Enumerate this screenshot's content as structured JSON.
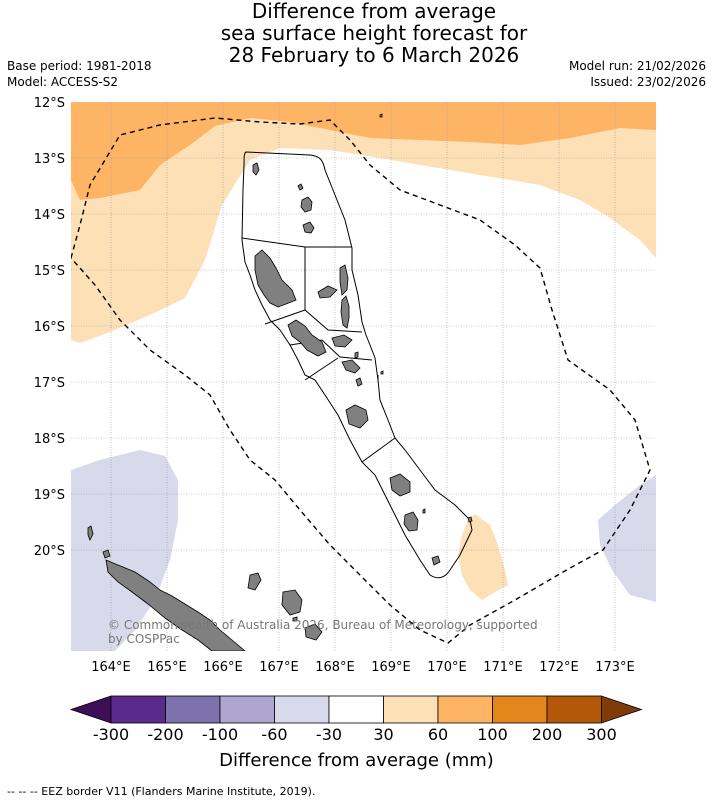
{
  "title_lines": [
    "Difference from average",
    "sea surface height forecast for",
    "28 February to 6 March 2026"
  ],
  "base_period": "Base period: 1981-2018",
  "model": "Model: ACCESS-S2",
  "model_run": "Model run: 21/02/2026",
  "issued": "Issued: 23/02/2026",
  "lat_labels": [
    "12°S",
    "13°S",
    "14°S",
    "15°S",
    "16°S",
    "17°S",
    "18°S",
    "19°S",
    "20°S"
  ],
  "lon_labels": [
    "164°E",
    "165°E",
    "166°E",
    "167°E",
    "168°E",
    "169°E",
    "170°E",
    "171°E",
    "172°E",
    "173°E"
  ],
  "copyright_lines": [
    "© Commonwealth of Australia 2026, Bureau of Meteorology, supported",
    "by COSPPac"
  ],
  "colorbar": {
    "ticks": [
      "-300",
      "-200",
      "-100",
      "-60",
      "-30",
      "30",
      "60",
      "100",
      "200",
      "300"
    ],
    "colors": [
      "#3c0f56",
      "#5b2a8a",
      "#7e72ad",
      "#aea6d0",
      "#d8d9ea",
      "#ffffff",
      "#fde0b5",
      "#fdb464",
      "#e3861c",
      "#b35808",
      "#7f3b08"
    ],
    "title": "Difference from average (mm)"
  },
  "footnote": "--  --  -- EEZ border V11 (Flanders Marine Institute, 2019).",
  "colors": {
    "orange_light": "#fde0b5",
    "orange_mid": "#fdb464",
    "lavender": "#d8d9ea",
    "land": "#808080",
    "grid": "#999999"
  }
}
